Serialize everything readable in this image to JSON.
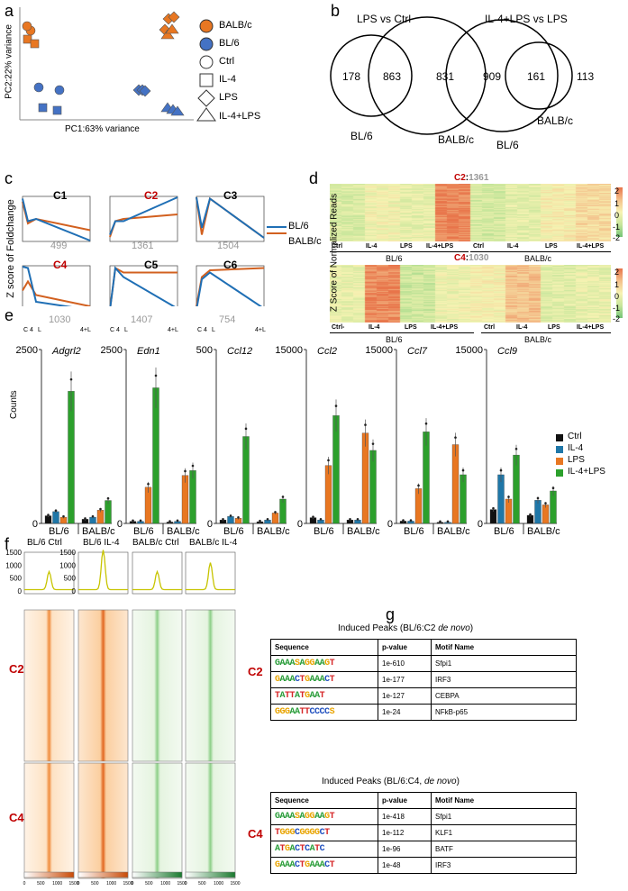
{
  "panels": {
    "a": "a",
    "b": "b",
    "c": "c",
    "d": "d",
    "e": "e",
    "f": "f",
    "g": "g"
  },
  "pca": {
    "xlabel": "PC1:63% variance",
    "ylabel": "PC2:22% variance",
    "legend": [
      "BALB/c",
      "BL/6",
      "Ctrl",
      "IL-4",
      "LPS",
      "IL-4+LPS"
    ],
    "colors": {
      "balbc": "#e87722",
      "bl6": "#4472c4"
    }
  },
  "venn": {
    "left": {
      "title": "LPS vs Ctrl",
      "only_bl6": "178",
      "shared": "863",
      "only_balbc": "831",
      "label_bl6": "BL/6",
      "label_balbc": "BALB/c"
    },
    "right": {
      "title": "IL-4+LPS vs LPS",
      "only_bl6": "909",
      "shared": "161",
      "only_balbc": "113",
      "label_bl6": "BL/6",
      "label_balbc": "BALB/c"
    }
  },
  "clusters": {
    "ylabel": "Z score of Foldchange",
    "legend": [
      "BL/6",
      "BALB/c"
    ],
    "xticks": [
      "C",
      "4",
      "L",
      "4+L"
    ],
    "items": [
      {
        "name": "C1",
        "count": "499"
      },
      {
        "name": "C2",
        "count": "1361"
      },
      {
        "name": "C3",
        "count": "1504"
      },
      {
        "name": "C4",
        "count": "1030"
      },
      {
        "name": "C5",
        "count": "1407"
      },
      {
        "name": "C6",
        "count": "754"
      }
    ]
  },
  "heatmap": {
    "ylabel": "Z Score of Normalized Reads",
    "top": {
      "cluster": "C2",
      "count": "1361"
    },
    "bottom": {
      "cluster": "C4",
      "count": "1030"
    },
    "conditions": [
      "Ctrl",
      "IL-4",
      "LPS",
      "IL-4+LPS"
    ],
    "conditions_bottom": [
      "Ctrl-",
      "IL-4",
      "LPS",
      "IL-4+LPS"
    ],
    "strains": [
      "BL/6",
      "BALB/c"
    ],
    "scale": [
      "2",
      "1",
      "0",
      "-1",
      "-2"
    ]
  },
  "bars": {
    "ylabel": "Counts",
    "groups": [
      "BL/6",
      "BALB/c"
    ],
    "legend": [
      "Ctrl",
      "IL-4",
      "LPS",
      "IL-4+LPS"
    ],
    "colors": [
      "#111111",
      "#1f77a8",
      "#e87722",
      "#2ca02c"
    ]
  },
  "chart_data": [
    {
      "type": "bar",
      "title": "Adgrl2",
      "ylabel": "Counts",
      "ylim": [
        0,
        2500
      ],
      "categories": [
        "BL/6",
        "BALB/c"
      ],
      "series": [
        {
          "name": "Ctrl",
          "values": [
            110,
            60
          ]
        },
        {
          "name": "IL-4",
          "values": [
            170,
            90
          ]
        },
        {
          "name": "LPS",
          "values": [
            90,
            190
          ]
        },
        {
          "name": "IL-4+LPS",
          "values": [
            1900,
            330
          ]
        }
      ]
    },
    {
      "type": "bar",
      "title": "Edn1",
      "ylim": [
        0,
        2500
      ],
      "categories": [
        "BL/6",
        "BALB/c"
      ],
      "series": [
        {
          "name": "Ctrl",
          "values": [
            30,
            20
          ]
        },
        {
          "name": "IL-4",
          "values": [
            30,
            30
          ]
        },
        {
          "name": "LPS",
          "values": [
            520,
            690
          ]
        },
        {
          "name": "IL-4+LPS",
          "values": [
            1950,
            760
          ]
        }
      ]
    },
    {
      "type": "bar",
      "title": "Ccl12",
      "ylim": [
        0,
        500
      ],
      "categories": [
        "BL/6",
        "BALB/c"
      ],
      "series": [
        {
          "name": "Ctrl",
          "values": [
            10,
            5
          ]
        },
        {
          "name": "IL-4",
          "values": [
            20,
            10
          ]
        },
        {
          "name": "LPS",
          "values": [
            15,
            30
          ]
        },
        {
          "name": "IL-4+LPS",
          "values": [
            250,
            70
          ]
        }
      ]
    },
    {
      "type": "bar",
      "title": "Ccl2",
      "ylim": [
        0,
        15000
      ],
      "categories": [
        "BL/6",
        "BALB/c"
      ],
      "series": [
        {
          "name": "Ctrl",
          "values": [
            500,
            300
          ]
        },
        {
          "name": "IL-4",
          "values": [
            300,
            300
          ]
        },
        {
          "name": "LPS",
          "values": [
            5000,
            7800
          ]
        },
        {
          "name": "IL-4+LPS",
          "values": [
            9300,
            6300
          ]
        }
      ]
    },
    {
      "type": "bar",
      "title": "Ccl7",
      "ylim": [
        0,
        15000
      ],
      "categories": [
        "BL/6",
        "BALB/c"
      ],
      "series": [
        {
          "name": "Ctrl",
          "values": [
            200,
            100
          ]
        },
        {
          "name": "IL-4",
          "values": [
            200,
            100
          ]
        },
        {
          "name": "LPS",
          "values": [
            3000,
            6800
          ]
        },
        {
          "name": "IL-4+LPS",
          "values": [
            7900,
            4200
          ]
        }
      ]
    },
    {
      "type": "bar",
      "title": "Ccl9",
      "ylim": [
        0,
        15000
      ],
      "categories": [
        "BL/6",
        "BALB/c"
      ],
      "series": [
        {
          "name": "Ctrl",
          "values": [
            1200,
            700
          ]
        },
        {
          "name": "IL-4",
          "values": [
            4200,
            2000
          ]
        },
        {
          "name": "LPS",
          "values": [
            2100,
            1600
          ]
        },
        {
          "name": "IL-4+LPS",
          "values": [
            5900,
            2800
          ]
        }
      ]
    }
  ],
  "atac": {
    "samples": [
      "BL/6 Ctrl",
      "BL/6 IL-4",
      "BALB/c Ctrl",
      "BALB/c IL-4"
    ],
    "profile_yticks_1": [
      "0",
      "500",
      "1000",
      "1500"
    ],
    "profile_yticks_2": [
      "0",
      "500",
      "1000",
      "1500"
    ],
    "rows": [
      "C2",
      "C4"
    ],
    "colorbar_ticks": [
      "0",
      "500",
      "1000",
      "1500"
    ]
  },
  "motifs": {
    "c2": {
      "label": "C2",
      "title": "Induced Peaks (BL/6:C2 ",
      "title_em": "de novo",
      "header": [
        "Sequence",
        "p-value",
        "Motif Name"
      ],
      "rows": [
        {
          "seq": "GAAASAGGAAGT",
          "p": "1e-610",
          "name": "Sfpi1"
        },
        {
          "seq": "GAAACTGAAACT",
          "p": "1e-177",
          "name": "IRF3"
        },
        {
          "seq": "TATTATGAAT",
          "p": "1e-127",
          "name": "CEBPA"
        },
        {
          "seq": "GGGAATTCCCCS",
          "p": "1e-24",
          "name": "NFkB-p65"
        }
      ]
    },
    "c4": {
      "label": "C4",
      "title": "Induced Peaks (BL/6:C4, ",
      "title_em": "de novo",
      "header": [
        "Sequence",
        "p-value",
        "Motif Name"
      ],
      "rows": [
        {
          "seq": "GAAASAGGAAGT",
          "p": "1e-418",
          "name": "Sfpi1"
        },
        {
          "seq": "TGGGCGGGGCT",
          "p": "1e-112",
          "name": "KLF1"
        },
        {
          "seq": "ATGACTCATC",
          "p": "1e-96",
          "name": "BATF"
        },
        {
          "seq": "GAAACTGAAACT",
          "p": "1e-48",
          "name": "IRF3"
        }
      ]
    }
  }
}
